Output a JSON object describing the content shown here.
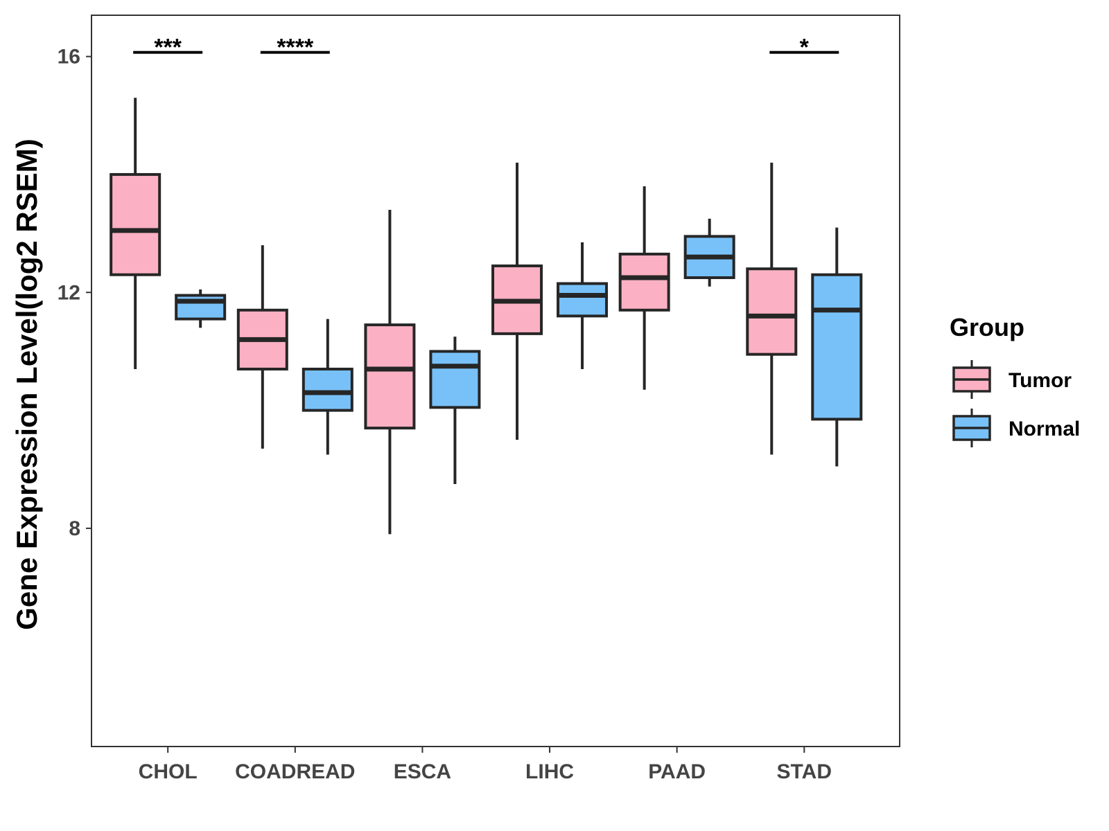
{
  "chart_data": {
    "type": "box",
    "title": "",
    "xlabel": "",
    "ylabel": "Gene Expression Level(log2 RSEM)",
    "ylim": [
      4.3,
      16.7
    ],
    "yticks": [
      8,
      12,
      16
    ],
    "ytick_labels": [
      "8",
      "12",
      "16"
    ],
    "grid": false,
    "categories": [
      "CHOL",
      "COADREAD",
      "ESCA",
      "LIHC",
      "PAAD",
      "STAD"
    ],
    "series": [
      {
        "name": "Tumor",
        "color": "#FBB1C3",
        "boxes": [
          {
            "category": "CHOL",
            "whisker_low": 10.7,
            "q1": 12.3,
            "median": 13.05,
            "q3": 14.0,
            "whisker_high": 15.3
          },
          {
            "category": "COADREAD",
            "whisker_low": 9.35,
            "q1": 10.7,
            "median": 11.2,
            "q3": 11.7,
            "whisker_high": 12.8
          },
          {
            "category": "ESCA",
            "whisker_low": 7.9,
            "q1": 9.7,
            "median": 10.7,
            "q3": 11.45,
            "whisker_high": 13.4
          },
          {
            "category": "LIHC",
            "whisker_low": 9.5,
            "q1": 11.3,
            "median": 11.85,
            "q3": 12.45,
            "whisker_high": 14.2
          },
          {
            "category": "PAAD",
            "whisker_low": 10.35,
            "q1": 11.7,
            "median": 12.25,
            "q3": 12.65,
            "whisker_high": 13.8
          },
          {
            "category": "STAD",
            "whisker_low": 9.25,
            "q1": 10.95,
            "median": 11.6,
            "q3": 12.4,
            "whisker_high": 14.2
          }
        ]
      },
      {
        "name": "Normal",
        "color": "#78C1F8",
        "boxes": [
          {
            "category": "CHOL",
            "whisker_low": 11.4,
            "q1": 11.55,
            "median": 11.85,
            "q3": 11.95,
            "whisker_high": 12.05
          },
          {
            "category": "COADREAD",
            "whisker_low": 9.25,
            "q1": 10.0,
            "median": 10.3,
            "q3": 10.7,
            "whisker_high": 11.55
          },
          {
            "category": "ESCA",
            "whisker_low": 8.75,
            "q1": 10.05,
            "median": 10.75,
            "q3": 11.0,
            "whisker_high": 11.25
          },
          {
            "category": "LIHC",
            "whisker_low": 10.7,
            "q1": 11.6,
            "median": 11.95,
            "q3": 12.15,
            "whisker_high": 12.85
          },
          {
            "category": "PAAD",
            "whisker_low": 12.1,
            "q1": 12.25,
            "median": 12.6,
            "q3": 12.95,
            "whisker_high": 13.25
          },
          {
            "category": "STAD",
            "whisker_low": 9.05,
            "q1": 9.85,
            "median": 11.7,
            "q3": 12.3,
            "whisker_high": 13.1
          }
        ]
      }
    ],
    "significance": [
      {
        "category": "CHOL",
        "label": "***",
        "y": 16.07
      },
      {
        "category": "COADREAD",
        "label": "****",
        "y": 16.07
      },
      {
        "category": "STAD",
        "label": "*",
        "y": 16.07
      }
    ],
    "legend": {
      "title": "Group",
      "position": "right",
      "items": [
        {
          "label": "Tumor",
          "color": "#FBB1C3"
        },
        {
          "label": "Normal",
          "color": "#78C1F8"
        }
      ]
    }
  }
}
